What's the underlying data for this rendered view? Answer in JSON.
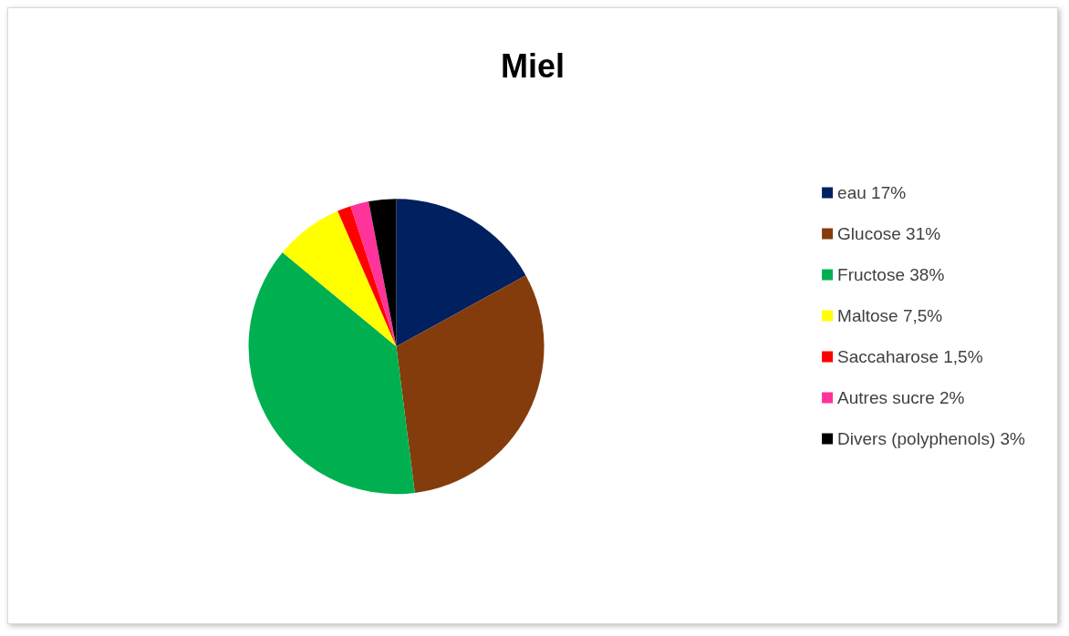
{
  "chart_data": {
    "type": "pie",
    "title": "Miel",
    "categories": [
      "eau 17%",
      "Glucose 31%",
      "Fructose 38%",
      "Maltose 7,5%",
      "Saccaharose 1,5%",
      "Autres sucre 2%",
      "Divers (polyphenols) 3%"
    ],
    "values": [
      17,
      31,
      38,
      7.5,
      1.5,
      2,
      3
    ],
    "colors": [
      "#002060",
      "#843c0c",
      "#00b050",
      "#ffff00",
      "#ff0000",
      "#ff3399",
      "#000000"
    ],
    "legend": "right"
  }
}
